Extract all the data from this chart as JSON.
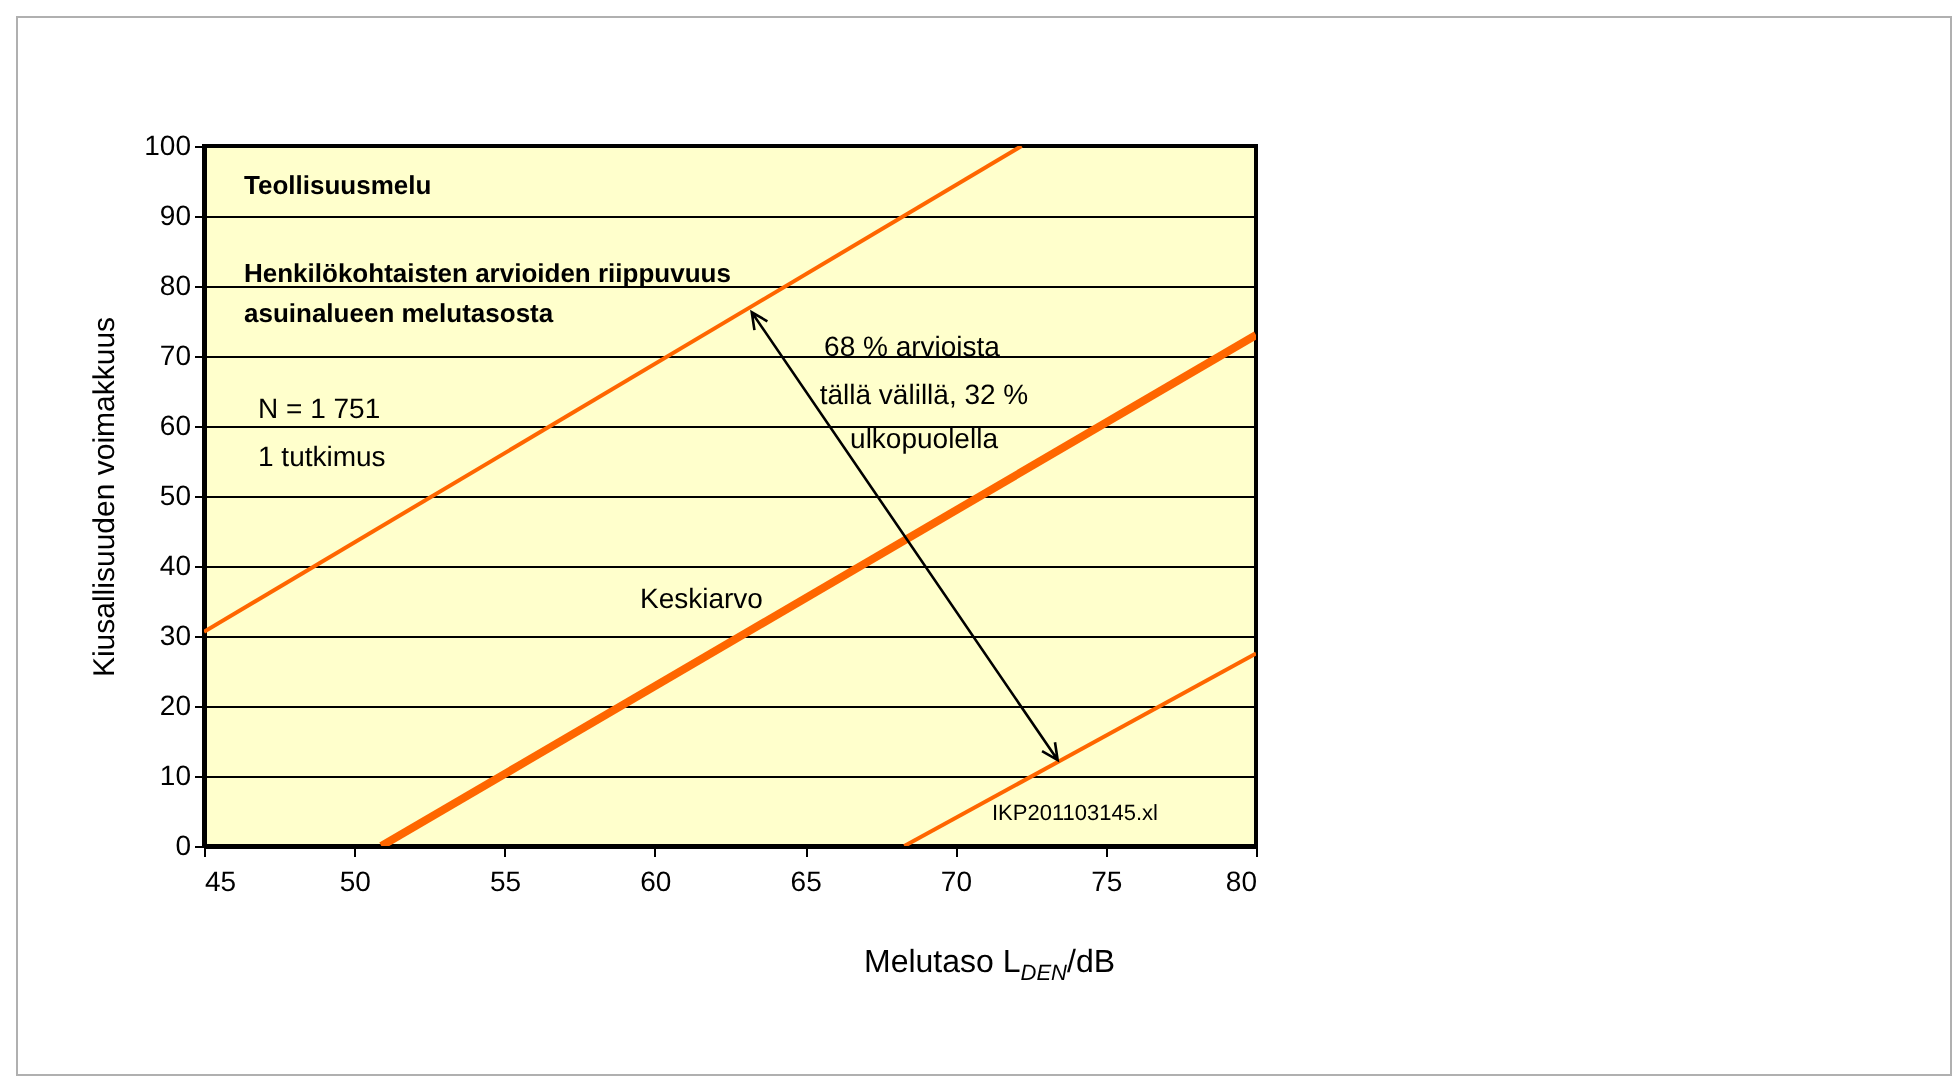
{
  "chart_data": {
    "type": "line",
    "xlabel": "Melutaso L$_{DEN}$/dB",
    "ylabel": "Kiusallisuuden voimakkuus",
    "xlim": [
      45,
      80
    ],
    "xticks": [
      45,
      50,
      55,
      60,
      65,
      70,
      75,
      80
    ],
    "ylim": [
      0,
      100
    ],
    "yticks": [
      0,
      10,
      20,
      30,
      40,
      50,
      60,
      70,
      80,
      90,
      100
    ],
    "grid": "y",
    "series": [
      {
        "color": "#ff6600",
        "x": [
          45,
          72.2
        ],
        "values": [
          30.6,
          100
        ]
      },
      {
        "name": "Keskiarvo",
        "color": "#ff6600",
        "x": [
          50.9,
          80
        ],
        "values": [
          0,
          73
        ]
      },
      {
        "color": "#ff6600",
        "x": [
          68.3,
          80
        ],
        "values": [
          0,
          27.5
        ]
      }
    ],
    "annotations": [
      "Teollisuusmelu",
      "Henkilökohtaisten arvioiden riippuvuus",
      "asuinalueen melutasosta",
      "N = 1 751",
      "1 tutkimus",
      "68 % arvioista",
      "tällä välillä, 32 %",
      "ulkopuolella",
      "IKP201103145.xl"
    ]
  }
}
